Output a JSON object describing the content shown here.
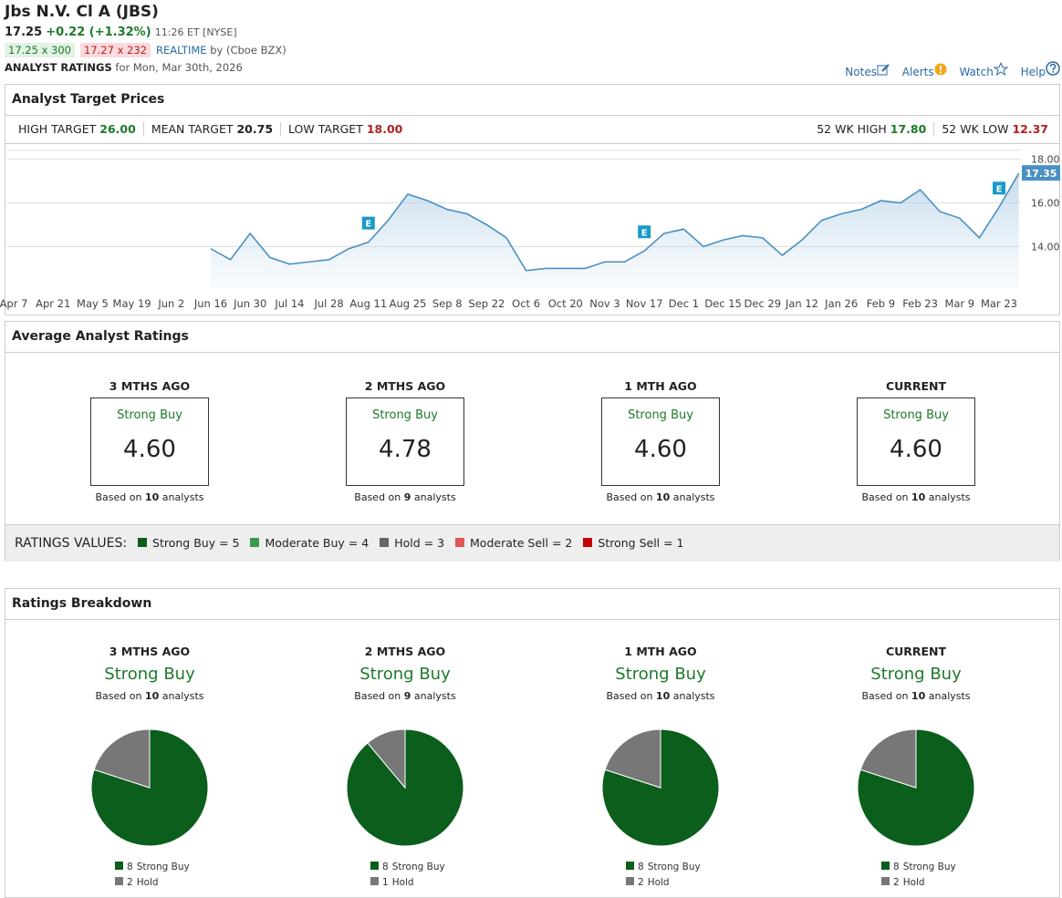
{
  "header": {
    "title": "Jbs N.V. Cl A (JBS)",
    "price": "17.25",
    "change": "+0.22 (+1.32%)",
    "time": "11:26 ET [NYSE]",
    "bid": "17.25 x 300",
    "ask": "17.27 x 232",
    "realtime": "REALTIME",
    "source": "by (Cboe BZX)",
    "section": "ANALYST RATINGS",
    "date": "for Mon, Mar 30th, 2026",
    "links": [
      "Notes",
      "Alerts",
      "Watch",
      "Help"
    ]
  },
  "target_prices": {
    "title": "Analyst Target Prices",
    "left": [
      {
        "label": "HIGH TARGET",
        "value": "26.00"
      },
      {
        "label": "MEAN TARGET",
        "value": "20.75"
      },
      {
        "label": "LOW TARGET",
        "value": "18.00"
      }
    ],
    "right": [
      {
        "label": "52 WK HIGH",
        "value": "17.80"
      },
      {
        "label": "52 WK LOW",
        "value": "12.37"
      }
    ]
  },
  "average_ratings": {
    "title": "Average Analyst Ratings",
    "columns": [
      {
        "period": "3 MTHS AGO",
        "rating": "Strong Buy",
        "score": "4.60",
        "based": "Based on",
        "count": "10",
        "unit": "analysts"
      },
      {
        "period": "2 MTHS AGO",
        "rating": "Strong Buy",
        "score": "4.78",
        "based": "Based on",
        "count": "9",
        "unit": "analysts"
      },
      {
        "period": "1 MTH AGO",
        "rating": "Strong Buy",
        "score": "4.60",
        "based": "Based on",
        "count": "10",
        "unit": "analysts"
      },
      {
        "period": "CURRENT",
        "rating": "Strong Buy",
        "score": "4.60",
        "based": "Based on",
        "count": "10",
        "unit": "analysts"
      }
    ],
    "legend_title": "RATINGS VALUES:",
    "legend": [
      {
        "label": "Strong Buy = 5",
        "color": "#0b5e1c"
      },
      {
        "label": "Moderate Buy = 4",
        "color": "#3a9a4a"
      },
      {
        "label": "Hold = 3",
        "color": "#666666"
      },
      {
        "label": "Moderate Sell = 2",
        "color": "#e05555"
      },
      {
        "label": "Strong Sell = 1",
        "color": "#c40000"
      }
    ]
  },
  "ratings_breakdown": {
    "title": "Ratings Breakdown",
    "columns": [
      {
        "period": "3 MTHS AGO",
        "rating": "Strong Buy",
        "based": "Based on",
        "count": "10",
        "unit": "analysts"
      },
      {
        "period": "2 MTHS AGO",
        "rating": "Strong Buy",
        "based": "Based on",
        "count": "9",
        "unit": "analysts"
      },
      {
        "period": "1 MTH AGO",
        "rating": "Strong Buy",
        "based": "Based on",
        "count": "10",
        "unit": "analysts"
      },
      {
        "period": "CURRENT",
        "rating": "Strong Buy",
        "based": "Based on",
        "count": "10",
        "unit": "analysts"
      }
    ]
  },
  "chart_data": [
    {
      "type": "line",
      "categories": [
        "Apr 7",
        null,
        "Apr 21",
        null,
        "May 5",
        null,
        "May 19",
        null,
        "Jun 2",
        null,
        "Jun 16",
        null,
        "Jun 30",
        null,
        "Jul 14",
        null,
        "Jul 28",
        null,
        "Aug 11",
        null,
        "Aug 25",
        null,
        "Sep 8",
        null,
        "Sep 22",
        null,
        "Oct 6",
        null,
        "Oct 20",
        null,
        "Nov 3",
        null,
        "Nov 17",
        null,
        "Dec 1",
        null,
        "Dec 15",
        null,
        "Dec 29",
        null,
        "Jan 12",
        null,
        "Jan 26",
        null,
        "Feb 9",
        null,
        "Feb 23",
        null,
        "Mar 9",
        null,
        "Mar 23",
        null
      ],
      "series": [
        {
          "color": "#4a90c2",
          "values": [
            null,
            null,
            null,
            null,
            null,
            null,
            null,
            null,
            null,
            null,
            13.9,
            13.4,
            14.6,
            13.5,
            13.2,
            13.3,
            13.4,
            13.9,
            14.2,
            15.2,
            16.4,
            16.1,
            15.7,
            15.5,
            15.0,
            14.4,
            12.9,
            13.0,
            13.0,
            13.0,
            13.3,
            13.3,
            13.8,
            14.6,
            14.8,
            14.0,
            14.3,
            14.5,
            14.4,
            13.6,
            14.3,
            15.2,
            15.5,
            15.7,
            16.1,
            16.0,
            16.6,
            15.6,
            15.3,
            14.4,
            15.8,
            17.35
          ]
        }
      ],
      "ylim": [
        12.1,
        18.4
      ],
      "yticks": [
        {
          "value": 14,
          "label": "14.00"
        },
        {
          "value": 16,
          "label": "16.00"
        },
        {
          "value": 18,
          "label": "18.00"
        }
      ],
      "grid": true,
      "annotations": [
        {
          "text": "E",
          "x": 18
        },
        {
          "text": "E",
          "x": 32
        },
        {
          "text": "E",
          "x": 50
        }
      ]
    },
    {
      "type": "pie",
      "categories": [
        "Strong Buy",
        "Hold"
      ],
      "values": [
        8,
        2
      ],
      "colors": [
        "#0b5e1c",
        "#777777"
      ]
    },
    {
      "type": "pie",
      "categories": [
        "Strong Buy",
        "Hold"
      ],
      "values": [
        8,
        1
      ],
      "colors": [
        "#0b5e1c",
        "#777777"
      ]
    },
    {
      "type": "pie",
      "categories": [
        "Strong Buy",
        "Hold"
      ],
      "values": [
        8,
        2
      ],
      "colors": [
        "#0b5e1c",
        "#777777"
      ]
    },
    {
      "type": "pie",
      "categories": [
        "Strong Buy",
        "Hold"
      ],
      "values": [
        8,
        2
      ],
      "colors": [
        "#0b5e1c",
        "#777777"
      ]
    }
  ]
}
